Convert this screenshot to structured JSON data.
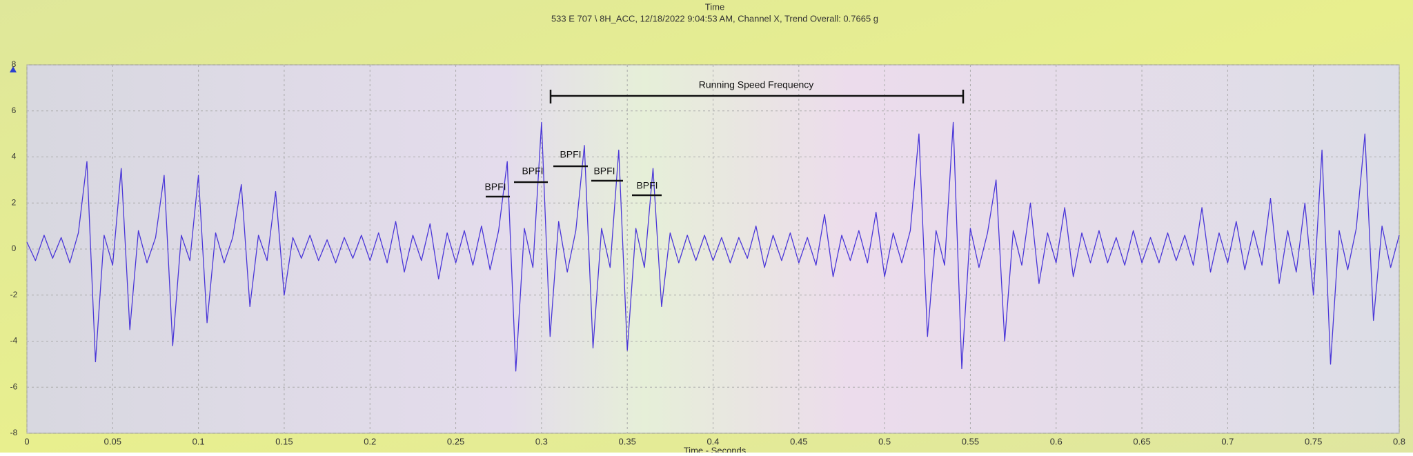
{
  "chart_data": {
    "type": "line",
    "title": "Time",
    "subtitle": "533 E 707 \\ 8H_ACC, 12/18/2022 9:04:53 AM, Channel X, Trend Overall: 0.7665 g",
    "x_label": "Time - Seconds",
    "annotations": [
      {
        "text": "Running Speed Frequency"
      },
      {
        "text": "BPFI"
      },
      {
        "text": "BPFI"
      },
      {
        "text": "BPFI"
      },
      {
        "text": "BPFI"
      },
      {
        "text": "BPFI"
      }
    ],
    "x": [
      0,
      0.005,
      0.01,
      0.015,
      0.02,
      0.025,
      0.03,
      0.035,
      0.04,
      0.045,
      0.05,
      0.055,
      0.06,
      0.065,
      0.07,
      0.075,
      0.08,
      0.085,
      0.09,
      0.095,
      0.1,
      0.105,
      0.11,
      0.115,
      0.12,
      0.125,
      0.13,
      0.135,
      0.14,
      0.145,
      0.15,
      0.155,
      0.16,
      0.165,
      0.17,
      0.175,
      0.18,
      0.185,
      0.19,
      0.195,
      0.2,
      0.205,
      0.21,
      0.215,
      0.22,
      0.225,
      0.23,
      0.235,
      0.24,
      0.245,
      0.25,
      0.255,
      0.26,
      0.265,
      0.27,
      0.275,
      0.28,
      0.285,
      0.29,
      0.295,
      0.3,
      0.305,
      0.31,
      0.315,
      0.32,
      0.325,
      0.33,
      0.335,
      0.34,
      0.345,
      0.35,
      0.355,
      0.36,
      0.365,
      0.37,
      0.375,
      0.38,
      0.385,
      0.39,
      0.395,
      0.4,
      0.405,
      0.41,
      0.415,
      0.42,
      0.425,
      0.43,
      0.435,
      0.44,
      0.445,
      0.45,
      0.455,
      0.46,
      0.465,
      0.47,
      0.475,
      0.48,
      0.485,
      0.49,
      0.495,
      0.5,
      0.505,
      0.51,
      0.515,
      0.52,
      0.525,
      0.53,
      0.535,
      0.54,
      0.545,
      0.55,
      0.555,
      0.56,
      0.565,
      0.57,
      0.575,
      0.58,
      0.585,
      0.59,
      0.595,
      0.6,
      0.605,
      0.61,
      0.615,
      0.62,
      0.625,
      0.63,
      0.635,
      0.64,
      0.645,
      0.65,
      0.655,
      0.66,
      0.665,
      0.67,
      0.675,
      0.68,
      0.685,
      0.69,
      0.695,
      0.7,
      0.705,
      0.71,
      0.715,
      0.72,
      0.725,
      0.73,
      0.735,
      0.74,
      0.745,
      0.75,
      0.755,
      0.76,
      0.765,
      0.77,
      0.775,
      0.78,
      0.785,
      0.79,
      0.795,
      0.8
    ],
    "series": [
      {
        "name": "Channel X",
        "color": "#4a36d8",
        "values": [
          0.3,
          -0.5,
          0.6,
          -0.4,
          0.5,
          -0.6,
          0.7,
          3.8,
          -4.9,
          0.6,
          -0.7,
          3.5,
          -3.5,
          0.8,
          -0.6,
          0.5,
          3.2,
          -4.2,
          0.6,
          -0.5,
          3.2,
          -3.2,
          0.7,
          -0.6,
          0.5,
          2.8,
          -2.5,
          0.6,
          -0.5,
          2.5,
          -2,
          0.5,
          -0.4,
          0.6,
          -0.5,
          0.4,
          -0.6,
          0.5,
          -0.4,
          0.6,
          -0.5,
          0.7,
          -0.6,
          1.2,
          -1.0,
          0.6,
          -0.5,
          1.1,
          -1.3,
          0.7,
          -0.6,
          0.8,
          -0.7,
          1.0,
          -0.9,
          0.8,
          3.8,
          -5.3,
          0.9,
          -0.8,
          5.5,
          -3.8,
          1.2,
          -1.0,
          0.8,
          4.5,
          -4.3,
          0.9,
          -0.8,
          4.3,
          -4.4,
          0.9,
          -0.8,
          3.5,
          -2.5,
          0.7,
          -0.6,
          0.6,
          -0.5,
          0.6,
          -0.5,
          0.5,
          -0.6,
          0.5,
          -0.4,
          1.0,
          -0.8,
          0.6,
          -0.5,
          0.7,
          -0.6,
          0.5,
          -0.7,
          1.5,
          -1.2,
          0.6,
          -0.5,
          0.8,
          -0.6,
          1.6,
          -1.2,
          0.7,
          -0.6,
          0.8,
          5.0,
          -3.8,
          0.8,
          -0.7,
          5.5,
          -5.2,
          0.9,
          -0.8,
          0.7,
          3.0,
          -4.0,
          0.8,
          -0.7,
          2.0,
          -1.5,
          0.7,
          -0.6,
          1.8,
          -1.2,
          0.7,
          -0.6,
          0.8,
          -0.6,
          0.5,
          -0.7,
          0.8,
          -0.6,
          0.5,
          -0.6,
          0.7,
          -0.5,
          0.6,
          -0.7,
          1.8,
          -1.0,
          0.7,
          -0.6,
          1.2,
          -0.9,
          0.8,
          -0.7,
          2.2,
          -1.5,
          0.8,
          -1.0,
          2.0,
          -2.0,
          4.3,
          -5.0,
          0.8,
          -0.9,
          0.9,
          5.0,
          -3.1,
          1.0,
          -0.8,
          0.6
        ]
      }
    ],
    "xlim": [
      0,
      0.8
    ],
    "xticks": [
      0,
      0.05,
      0.1,
      0.15,
      0.2,
      0.25,
      0.3,
      0.35,
      0.4,
      0.45,
      0.5,
      0.55,
      0.6,
      0.65,
      0.7,
      0.75,
      0.8
    ],
    "ylim": [
      -8,
      8
    ],
    "yticks": [
      -8,
      -6,
      -4,
      -2,
      0,
      2,
      4,
      6,
      8
    ],
    "grid": true
  }
}
